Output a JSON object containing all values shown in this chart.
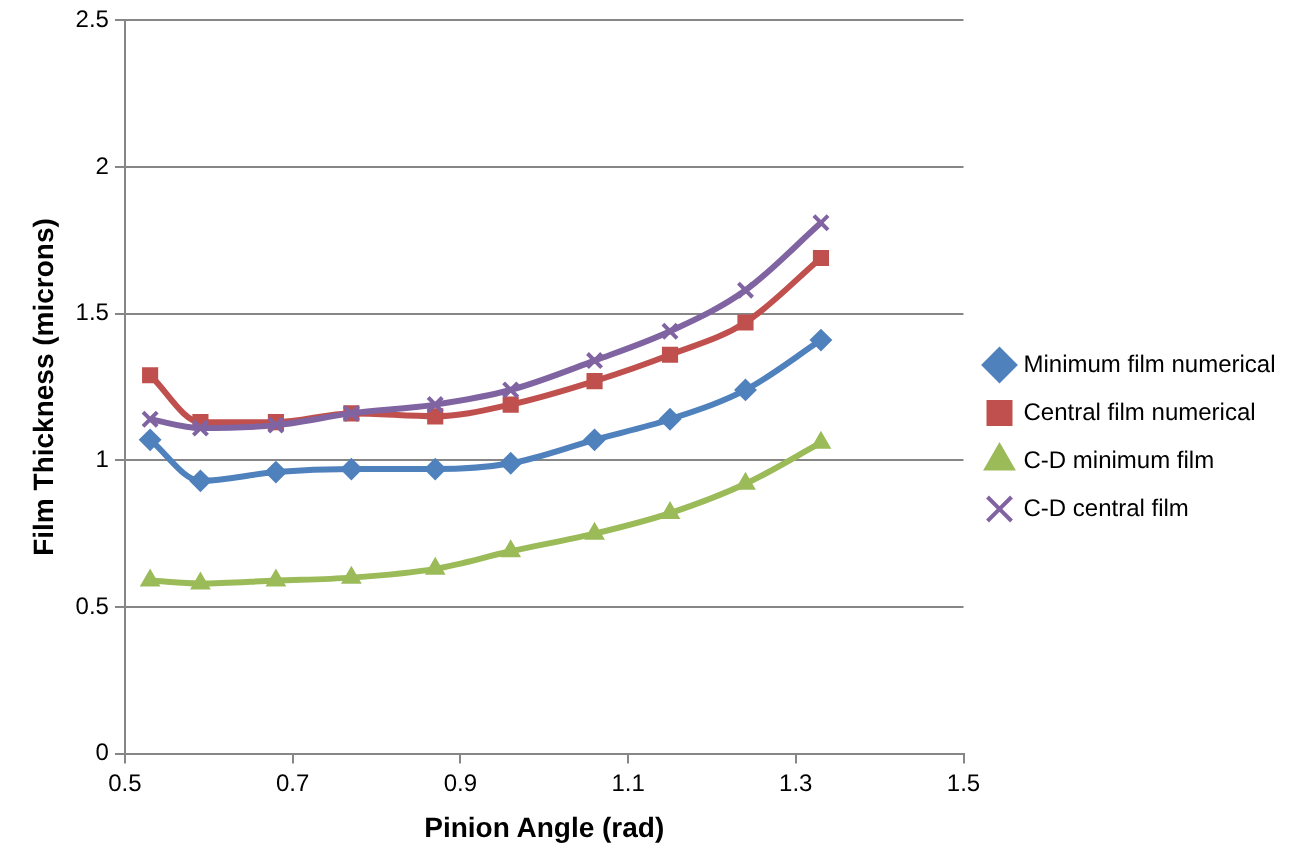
{
  "chart_data": {
    "type": "line",
    "xlabel": "Pinion Angle (rad)",
    "ylabel": "Film Thickness (microns)",
    "x": [
      0.53,
      0.59,
      0.68,
      0.77,
      0.87,
      0.96,
      1.06,
      1.15,
      1.24,
      1.33
    ],
    "xlim": [
      0.5,
      1.5
    ],
    "xticks": [
      0.5,
      0.7,
      0.9,
      1.1,
      1.3,
      1.5
    ],
    "ylim": [
      0,
      2.5
    ],
    "yticks": [
      0,
      0.5,
      1,
      1.5,
      2,
      2.5
    ],
    "grid": "y",
    "legend": "right",
    "line_style": "solid",
    "series": [
      {
        "name": "Minimum film numerical",
        "color": "#4f81bd",
        "marker": "diamond",
        "values": [
          1.07,
          0.93,
          0.96,
          0.97,
          0.97,
          0.99,
          1.07,
          1.14,
          1.24,
          1.41
        ]
      },
      {
        "name": "Central film numerical",
        "color": "#c0504d",
        "marker": "square",
        "values": [
          1.29,
          1.13,
          1.13,
          1.16,
          1.15,
          1.19,
          1.27,
          1.36,
          1.47,
          1.69
        ]
      },
      {
        "name": "C-D minimum film",
        "color": "#9bbb59",
        "marker": "triangle",
        "values": [
          0.59,
          0.58,
          0.59,
          0.6,
          0.63,
          0.69,
          0.75,
          0.82,
          0.92,
          1.06
        ]
      },
      {
        "name": "C-D central film",
        "color": "#8064a2",
        "marker": "cross",
        "values": [
          1.14,
          1.11,
          1.12,
          1.16,
          1.19,
          1.24,
          1.34,
          1.44,
          1.58,
          1.81
        ]
      }
    ]
  }
}
